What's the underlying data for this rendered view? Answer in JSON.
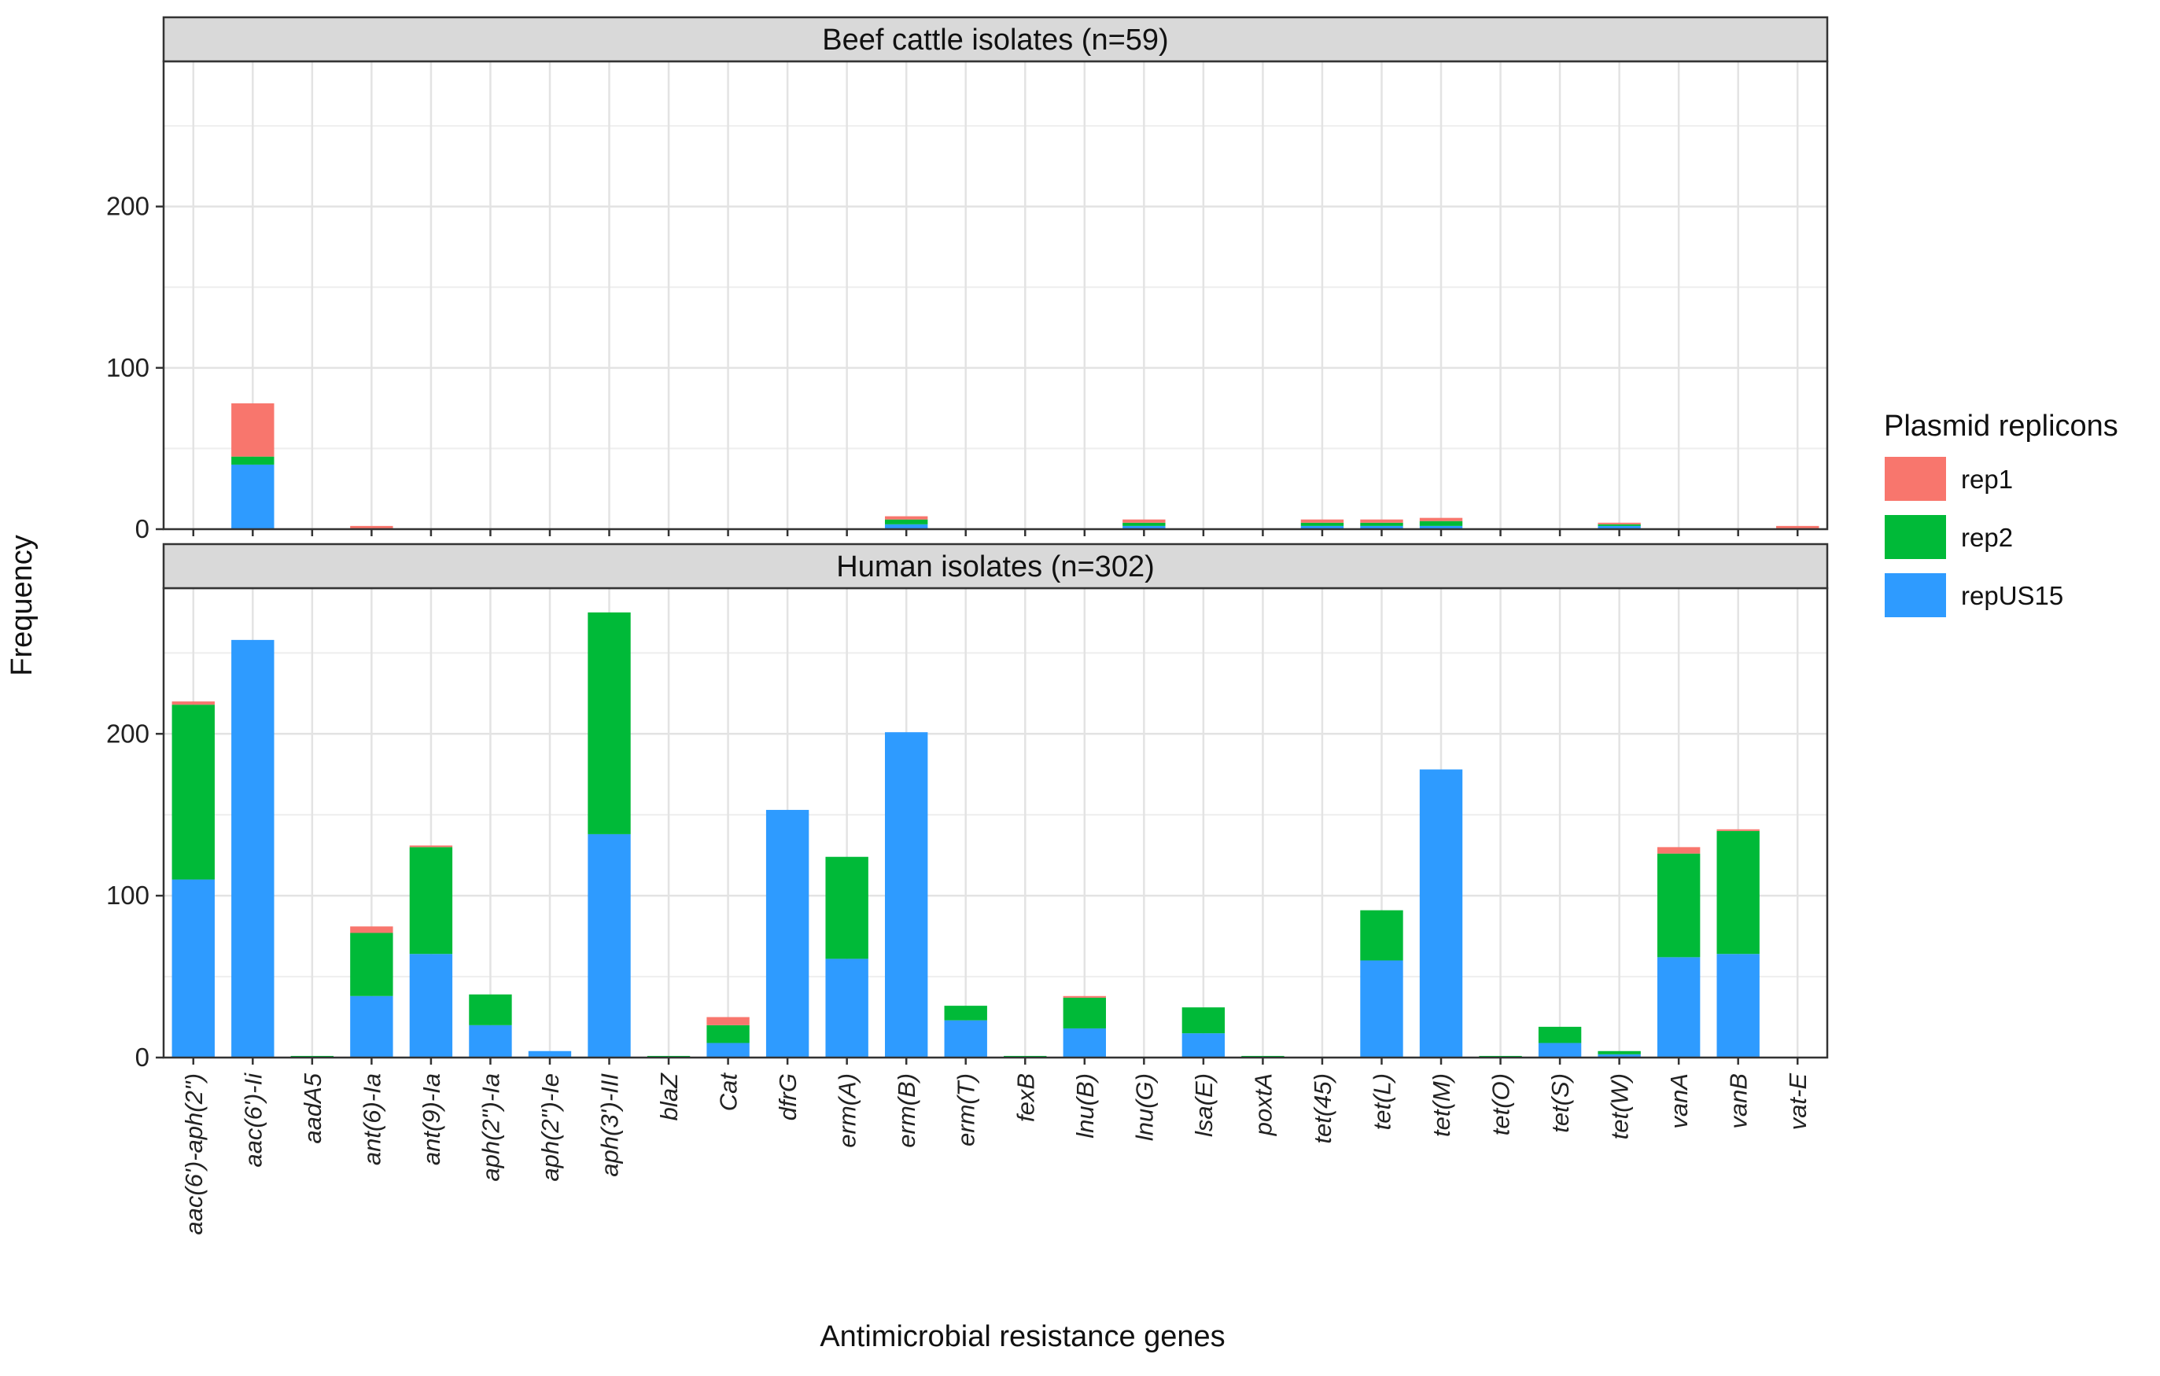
{
  "chart_data": {
    "type": "bar",
    "stacked": true,
    "xlabel": "Antimicrobial resistance genes",
    "ylabel": "Frequency",
    "ylim": [
      0,
      290
    ],
    "yticks": [
      0,
      100,
      200
    ],
    "ytick_labels": [
      "0",
      "100",
      "200"
    ],
    "grid": true,
    "legend_title": "Plasmid replicons",
    "legend_position": "right",
    "categories": [
      "aac(6')-aph(2'')",
      "aac(6')-Ii",
      "aadA5",
      "ant(6)-Ia",
      "ant(9)-Ia",
      "aph(2'')-Ia",
      "aph(2'')-Ie",
      "aph(3')-III",
      "blaZ",
      "Cat",
      "dfrG",
      "erm(A)",
      "erm(B)",
      "erm(T)",
      "fexB",
      "lnu(B)",
      "lnu(G)",
      "lsa(E)",
      "poxtA",
      "tet(45)",
      "tet(L)",
      "tet(M)",
      "tet(O)",
      "tet(S)",
      "tet(W)",
      "vanA",
      "vanB",
      "vat-E"
    ],
    "series_meta": [
      {
        "name": "rep1",
        "color": "#F8766D"
      },
      {
        "name": "rep2",
        "color": "#00BA38"
      },
      {
        "name": "repUS15",
        "color": "#2E9BFF"
      }
    ],
    "panels": [
      {
        "title": "Beef cattle isolates (n=59)",
        "series": [
          {
            "name": "repUS15",
            "values": [
              0,
              40,
              0,
              0,
              0,
              0,
              0,
              0,
              0,
              0,
              0,
              0,
              3,
              0,
              0,
              0,
              2,
              0,
              0,
              2,
              2,
              2,
              0,
              0,
              2,
              0,
              0,
              0
            ]
          },
          {
            "name": "rep2",
            "values": [
              0,
              5,
              0,
              0,
              0,
              0,
              0,
              0,
              0,
              0,
              0,
              0,
              3,
              0,
              0,
              0,
              2,
              0,
              0,
              2,
              2,
              3,
              0,
              0,
              1,
              0,
              0,
              0
            ]
          },
          {
            "name": "rep1",
            "values": [
              0,
              33,
              0,
              2,
              0,
              0,
              0,
              0,
              0,
              0,
              0,
              0,
              2,
              0,
              0,
              0,
              2,
              0,
              0,
              2,
              2,
              2,
              0,
              0,
              1,
              0,
              0,
              2
            ]
          }
        ]
      },
      {
        "title": "Human isolates (n=302)",
        "series": [
          {
            "name": "repUS15",
            "values": [
              110,
              258,
              0,
              38,
              64,
              20,
              4,
              138,
              0,
              9,
              153,
              61,
              201,
              23,
              0,
              18,
              0,
              15,
              0,
              0,
              60,
              178,
              0,
              9,
              2,
              62,
              64,
              0
            ]
          },
          {
            "name": "rep2",
            "values": [
              108,
              0,
              1,
              39,
              66,
              19,
              0,
              137,
              1,
              11,
              0,
              63,
              0,
              9,
              1,
              19,
              0,
              16,
              1,
              0,
              31,
              0,
              1,
              10,
              2,
              64,
              76,
              0
            ]
          },
          {
            "name": "rep1",
            "values": [
              2,
              0,
              0,
              4,
              1,
              0,
              0,
              0,
              0,
              5,
              0,
              0,
              0,
              0,
              0,
              1,
              0,
              0,
              0,
              0,
              0,
              0,
              0,
              0,
              0,
              4,
              1,
              0
            ]
          }
        ]
      }
    ]
  }
}
